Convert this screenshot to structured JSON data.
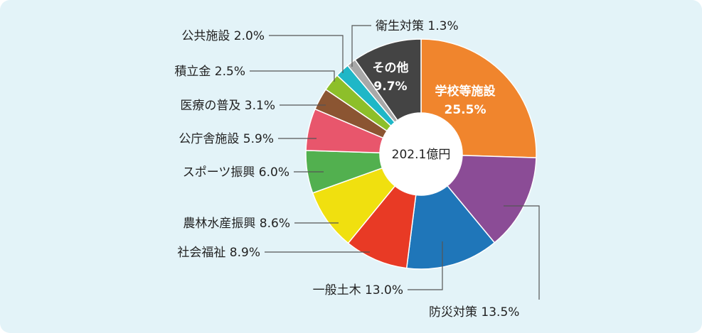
{
  "chart_data": {
    "type": "pie",
    "variant": "donut",
    "center_label": "202.1億円",
    "slices": [
      {
        "name": "学校等施設",
        "value": 25.5,
        "label": "25.5%",
        "color": "#f0852d"
      },
      {
        "name": "防災対策",
        "value": 13.5,
        "label": "13.5%",
        "color": "#8b4c96"
      },
      {
        "name": "一般土木",
        "value": 13.0,
        "label": "13.0%",
        "color": "#1f76b9"
      },
      {
        "name": "社会福祉",
        "value": 8.9,
        "label": "8.9%",
        "color": "#e83a25"
      },
      {
        "name": "農林水産振興",
        "value": 8.6,
        "label": "8.6%",
        "color": "#f0e00f"
      },
      {
        "name": "スポーツ振興",
        "value": 6.0,
        "label": "6.0%",
        "color": "#52b04f"
      },
      {
        "name": "公庁舎施設",
        "value": 5.9,
        "label": "5.9%",
        "color": "#e8566c"
      },
      {
        "name": "医療の普及",
        "value": 3.1,
        "label": "3.1%",
        "color": "#8b5532"
      },
      {
        "name": "積立金",
        "value": 2.5,
        "label": "2.5%",
        "color": "#8dbf2a"
      },
      {
        "name": "公共施設",
        "value": 2.0,
        "label": "2.0%",
        "color": "#1fb7c7"
      },
      {
        "name": "衛生対策",
        "value": 1.3,
        "label": "1.3%",
        "color": "#a8a8a8"
      },
      {
        "name": "その他",
        "value": 9.7,
        "label": "9.7%",
        "color": "#444444"
      }
    ]
  }
}
